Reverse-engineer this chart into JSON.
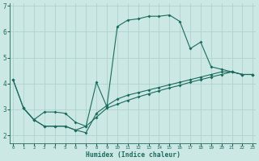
{
  "xlabel": "Humidex (Indice chaleur)",
  "bg_color": "#cce8e4",
  "line_color": "#1a6b5e",
  "grid_color": "#aacfcb",
  "xlim": [
    -0.3,
    23.3
  ],
  "ylim": [
    1.7,
    7.1
  ],
  "yticks": [
    2,
    3,
    4,
    5,
    6,
    7
  ],
  "xtick_labels": [
    "0",
    "1",
    "2",
    "3",
    "4",
    "5",
    "6",
    "7",
    "8",
    "9",
    "10",
    "11",
    "12",
    "13",
    "14",
    "15",
    "16",
    "17",
    "18",
    "19",
    "20",
    "21",
    "22",
    "23"
  ],
  "series1_x": [
    0,
    1,
    2,
    3,
    4,
    5,
    6,
    7,
    8,
    9,
    10,
    11,
    12,
    13,
    14,
    15,
    16,
    17,
    18,
    19,
    20,
    21,
    22,
    23
  ],
  "series1_y": [
    4.15,
    3.05,
    2.6,
    2.35,
    2.35,
    2.35,
    2.2,
    2.35,
    4.05,
    3.1,
    6.2,
    6.45,
    6.5,
    6.6,
    6.6,
    6.65,
    6.4,
    5.35,
    5.6,
    4.65,
    4.55,
    4.45,
    4.35,
    4.35
  ],
  "series2_x": [
    0,
    1,
    2,
    3,
    4,
    5,
    6,
    7,
    8,
    9,
    10,
    11,
    12,
    13,
    14,
    15,
    16,
    17,
    18,
    19,
    20,
    21,
    22,
    23
  ],
  "series2_y": [
    4.15,
    3.05,
    2.6,
    2.35,
    2.35,
    2.35,
    2.2,
    2.1,
    2.85,
    3.15,
    3.4,
    3.55,
    3.65,
    3.75,
    3.85,
    3.95,
    4.05,
    4.15,
    4.25,
    4.35,
    4.45,
    4.45,
    4.35,
    4.35
  ],
  "series3_x": [
    1,
    2,
    3,
    4,
    5,
    6,
    7,
    8,
    9,
    10,
    11,
    12,
    13,
    14,
    15,
    16,
    17,
    18,
    19,
    20,
    21,
    22,
    23
  ],
  "series3_y": [
    3.05,
    2.6,
    2.9,
    2.9,
    2.85,
    2.5,
    2.35,
    2.7,
    3.05,
    3.2,
    3.35,
    3.48,
    3.6,
    3.72,
    3.83,
    3.93,
    4.05,
    4.15,
    4.25,
    4.35,
    4.45,
    4.35,
    4.35
  ]
}
